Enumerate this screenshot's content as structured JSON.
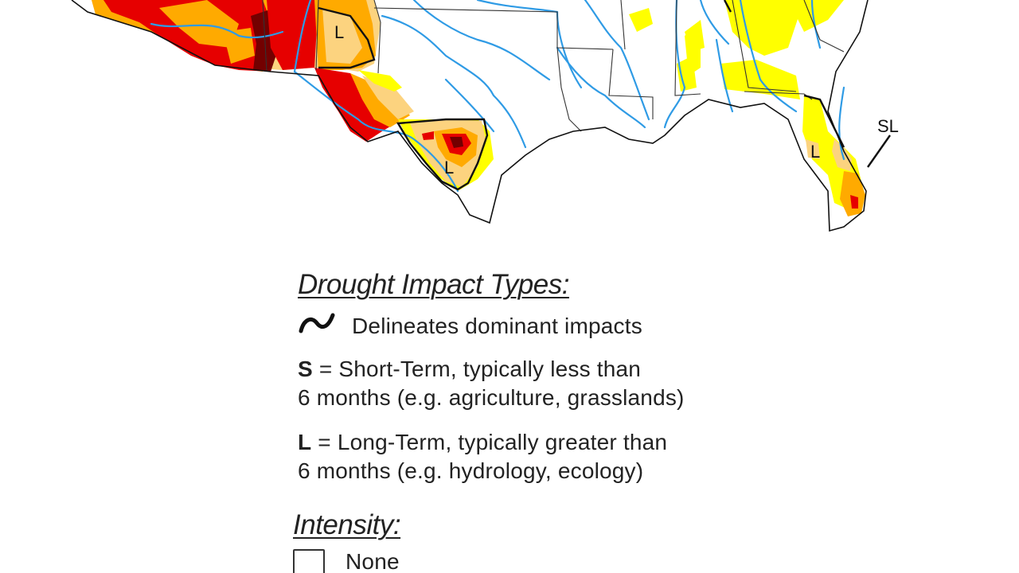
{
  "map": {
    "labels": [
      {
        "name": "map-label-l-new-mexico",
        "text": "L"
      },
      {
        "name": "map-label-l-texas",
        "text": "L"
      },
      {
        "name": "map-label-l-florida",
        "text": "L"
      },
      {
        "name": "map-label-sl-florida",
        "text": "SL"
      }
    ],
    "colors": {
      "abnormally_dry": "#ffff00",
      "moderate": "#fcd37f",
      "severe": "#ffaa00",
      "extreme": "#e60000",
      "exceptional": "#730000",
      "rivers": "#3399ff",
      "borders": "#000000"
    }
  },
  "legend": {
    "impact_heading": "Drought Impact Types:",
    "delineates_text": "Delineates dominant impacts",
    "short_term_key": "S",
    "short_term_line1": " = Short-Term, typically less than",
    "short_term_line2": "6 months (e.g. agriculture, grasslands)",
    "long_term_key": "L",
    "long_term_line1": " = Long-Term, typically greater than",
    "long_term_line2": "6 months (e.g. hydrology, ecology)",
    "intensity_heading": "Intensity:",
    "none_label": "None"
  }
}
